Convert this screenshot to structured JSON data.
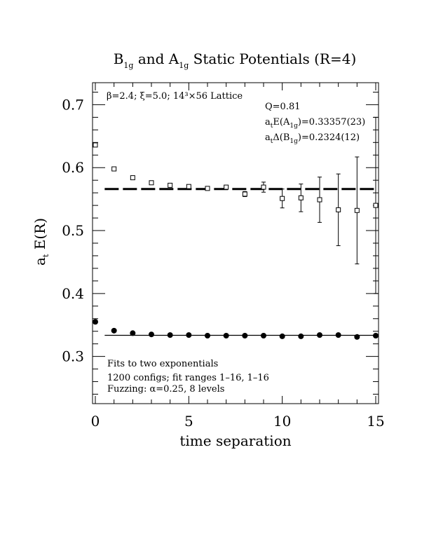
{
  "chart_data": {
    "type": "scatter",
    "title": {
      "text": "B",
      "sub1": "1g",
      "mid": " and A",
      "sub2": "1g",
      "tail": " Static Potentials (R=4)"
    },
    "xlabel": "time separation",
    "ylabel": {
      "main": "a",
      "sub": "t",
      "tail": " E(R)"
    },
    "xlim": [
      0,
      15
    ],
    "ylim": [
      0.225,
      0.735
    ],
    "xticks": [
      0,
      5,
      10,
      15
    ],
    "xtick_labels": [
      "0",
      "5",
      "10",
      "15"
    ],
    "yticks": [
      0.3,
      0.4,
      0.5,
      0.6,
      0.7
    ],
    "ytick_labels": [
      "0.3",
      "0.4",
      "0.5",
      "0.6",
      "0.7"
    ],
    "grid": false,
    "legend": null,
    "annotations": {
      "lattice": "β=2.4; ξ=5.0; 14³×56 Lattice",
      "q": "Q=0.81",
      "energy": {
        "pre": "a",
        "pre_sub": "t",
        "mid": "E(A",
        "mid_sub": "1g",
        "post": ")=0.33357(23)"
      },
      "gap": {
        "pre": "a",
        "pre_sub": "t",
        "mid": "Δ(B",
        "mid_sub": "1g",
        "post": ")=0.2324(12)"
      },
      "fits": "Fits to two exponentials",
      "configs": "1200 configs; fit ranges 1–16, 1–16",
      "fuzzing": "Fuzzing: α=0.25, 8 levels"
    },
    "series": [
      {
        "name": "B1g",
        "marker": "open-square",
        "x": [
          0,
          1,
          2,
          3,
          4,
          5,
          6,
          7,
          8,
          9,
          10,
          11,
          12,
          13,
          14,
          15
        ],
        "y": [
          0.636,
          0.598,
          0.584,
          0.576,
          0.572,
          0.57,
          0.567,
          0.569,
          0.558,
          0.569,
          0.551,
          0.552,
          0.549,
          0.533,
          0.532,
          0.54
        ],
        "err": [
          0.002,
          0.002,
          0.002,
          0.002,
          0.002,
          0.002,
          0.002,
          0.002,
          0.004,
          0.008,
          0.015,
          0.022,
          0.036,
          0.057,
          0.085,
          0.14
        ]
      },
      {
        "name": "A1g",
        "marker": "filled-circle",
        "x": [
          0,
          1,
          2,
          3,
          4,
          5,
          6,
          7,
          8,
          9,
          10,
          11,
          12,
          13,
          14,
          15
        ],
        "y": [
          0.355,
          0.341,
          0.337,
          0.335,
          0.334,
          0.334,
          0.333,
          0.333,
          0.333,
          0.333,
          0.332,
          0.332,
          0.334,
          0.334,
          0.331,
          0.333
        ],
        "err": [
          0.001,
          0.001,
          0.001,
          0.001,
          0.001,
          0.001,
          0.001,
          0.001,
          0.001,
          0.001,
          0.001,
          0.001,
          0.001,
          0.001,
          0.001,
          0.001
        ]
      }
    ],
    "fit_lines": [
      {
        "name": "B1g fit",
        "style": "dashed",
        "x": [
          0.5,
          15
        ],
        "y": 0.566
      },
      {
        "name": "A1g fit",
        "style": "solid",
        "x": [
          0.5,
          15
        ],
        "y": 0.33357
      }
    ]
  }
}
